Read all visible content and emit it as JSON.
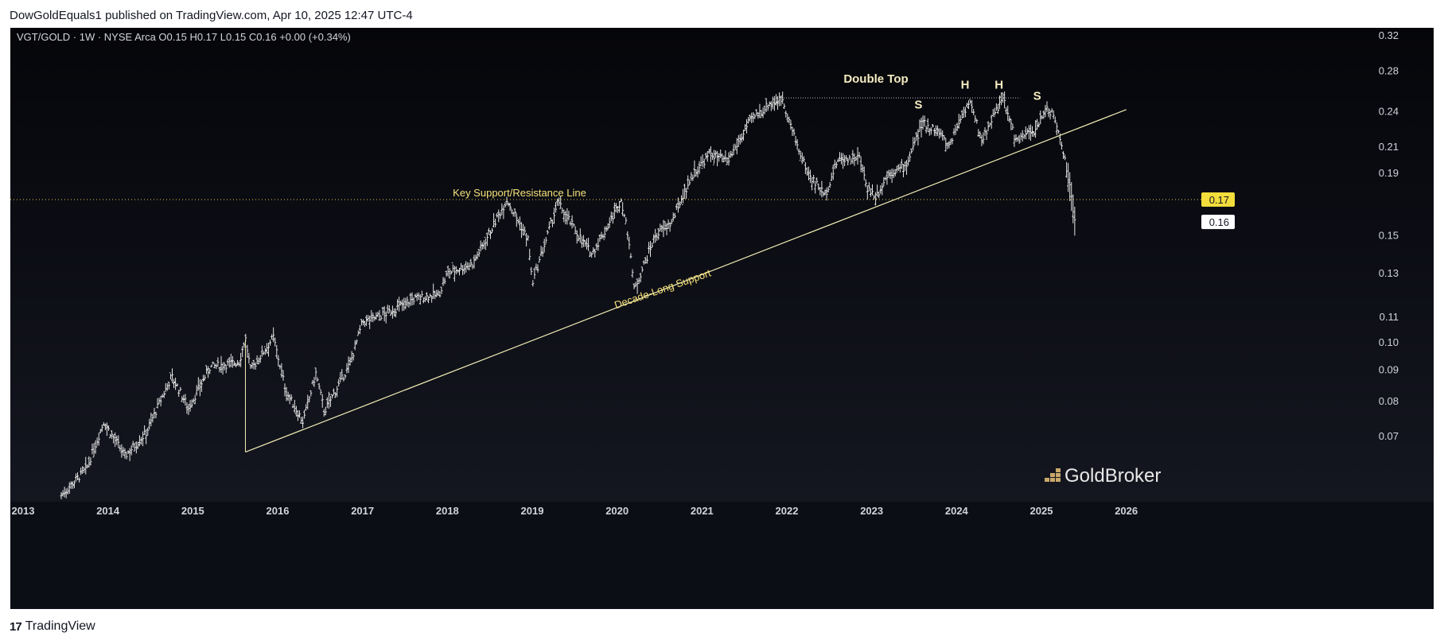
{
  "header": {
    "publisher_line": "DowGoldEquals1 published on TradingView.com, Apr 10, 2025 12:47 UTC-4"
  },
  "footer": {
    "brand": "TradingView"
  },
  "chart_data": {
    "type": "bar",
    "symbol_line": "VGT/GOLD · 1W · NYSE Arca  O0.15  H0.17  L0.15  C0.16  +0.00 (+0.34%)",
    "scale": "log",
    "ylim": [
      0.055,
      0.33
    ],
    "y_ticks": [
      "0.32",
      "0.28",
      "0.24",
      "0.21",
      "0.19",
      "0.15",
      "0.13",
      "0.11",
      "0.10",
      "0.09",
      "0.08",
      "0.07"
    ],
    "x_ticks": [
      "2013",
      "2014",
      "2015",
      "2016",
      "2017",
      "2018",
      "2019",
      "2020",
      "2021",
      "2022",
      "2023",
      "2024",
      "2025",
      "2026"
    ],
    "xlim": [
      2012.85,
      2026.8
    ],
    "price_labels": [
      {
        "text": "0.17",
        "value": 0.172,
        "style": "yellow"
      },
      {
        "text": "0.16",
        "value": 0.158,
        "style": "white"
      }
    ],
    "anchors": [
      [
        2013.45,
        0.056
      ],
      [
        2013.75,
        0.062
      ],
      [
        2013.95,
        0.074
      ],
      [
        2014.2,
        0.065
      ],
      [
        2014.45,
        0.071
      ],
      [
        2014.75,
        0.088
      ],
      [
        2014.95,
        0.078
      ],
      [
        2015.2,
        0.091
      ],
      [
        2015.55,
        0.093
      ],
      [
        2015.62,
        0.102
      ],
      [
        2015.68,
        0.09
      ],
      [
        2015.95,
        0.102
      ],
      [
        2016.1,
        0.083
      ],
      [
        2016.3,
        0.074
      ],
      [
        2016.45,
        0.089
      ],
      [
        2016.55,
        0.077
      ],
      [
        2016.85,
        0.092
      ],
      [
        2017.0,
        0.108
      ],
      [
        2017.3,
        0.112
      ],
      [
        2017.6,
        0.118
      ],
      [
        2017.9,
        0.12
      ],
      [
        2018.0,
        0.13
      ],
      [
        2018.3,
        0.135
      ],
      [
        2018.5,
        0.152
      ],
      [
        2018.7,
        0.172
      ],
      [
        2018.95,
        0.148
      ],
      [
        2019.0,
        0.125
      ],
      [
        2019.3,
        0.17
      ],
      [
        2019.55,
        0.15
      ],
      [
        2019.7,
        0.14
      ],
      [
        2019.85,
        0.152
      ],
      [
        2020.05,
        0.172
      ],
      [
        2020.15,
        0.145
      ],
      [
        2020.2,
        0.122
      ],
      [
        2020.45,
        0.15
      ],
      [
        2020.65,
        0.158
      ],
      [
        2020.75,
        0.172
      ],
      [
        2020.9,
        0.19
      ],
      [
        2021.1,
        0.205
      ],
      [
        2021.3,
        0.198
      ],
      [
        2021.55,
        0.23
      ],
      [
        2021.8,
        0.248
      ],
      [
        2021.95,
        0.252
      ],
      [
        2022.1,
        0.215
      ],
      [
        2022.25,
        0.19
      ],
      [
        2022.45,
        0.175
      ],
      [
        2022.6,
        0.2
      ],
      [
        2022.85,
        0.202
      ],
      [
        2022.95,
        0.18
      ],
      [
        2023.05,
        0.174
      ],
      [
        2023.2,
        0.19
      ],
      [
        2023.4,
        0.195
      ],
      [
        2023.6,
        0.23
      ],
      [
        2023.8,
        0.222
      ],
      [
        2023.9,
        0.21
      ],
      [
        2024.05,
        0.235
      ],
      [
        2024.15,
        0.25
      ],
      [
        2024.3,
        0.215
      ],
      [
        2024.45,
        0.24
      ],
      [
        2024.55,
        0.252
      ],
      [
        2024.7,
        0.215
      ],
      [
        2024.95,
        0.225
      ],
      [
        2025.05,
        0.245
      ],
      [
        2025.15,
        0.235
      ],
      [
        2025.25,
        0.21
      ],
      [
        2025.35,
        0.175
      ],
      [
        2025.4,
        0.155
      ]
    ],
    "support_line": {
      "from": [
        2015.62,
        0.066
      ],
      "to": [
        2026.0,
        0.242
      ]
    },
    "resistance_level": 0.172,
    "double_top_level": 0.253,
    "double_top_range": [
      2021.85,
      2024.75
    ],
    "annotations": [
      {
        "text": "Key Support/Resistance Line",
        "x": 2018.85,
        "y": 0.174
      },
      {
        "text": "Decade-Long Support",
        "x": 2020.55,
        "y": 0.121,
        "rotate": -19
      },
      {
        "text": "Double Top",
        "x": 2023.05,
        "y": 0.268
      },
      {
        "text": "S",
        "x": 2023.55,
        "y": 0.243
      },
      {
        "text": "H",
        "x": 2024.1,
        "y": 0.262
      },
      {
        "text": "H",
        "x": 2024.5,
        "y": 0.262
      },
      {
        "text": "S",
        "x": 2024.95,
        "y": 0.251
      }
    ],
    "colors": {
      "background_top": "#05060a",
      "background_bottom": "#181a25",
      "price_bars": "#e6e6e6",
      "support_line": "#f3eeb5",
      "annotation_yellow": "#f6e27a",
      "axis_text": "#d1d4dc"
    },
    "watermark": "GoldBroker"
  }
}
